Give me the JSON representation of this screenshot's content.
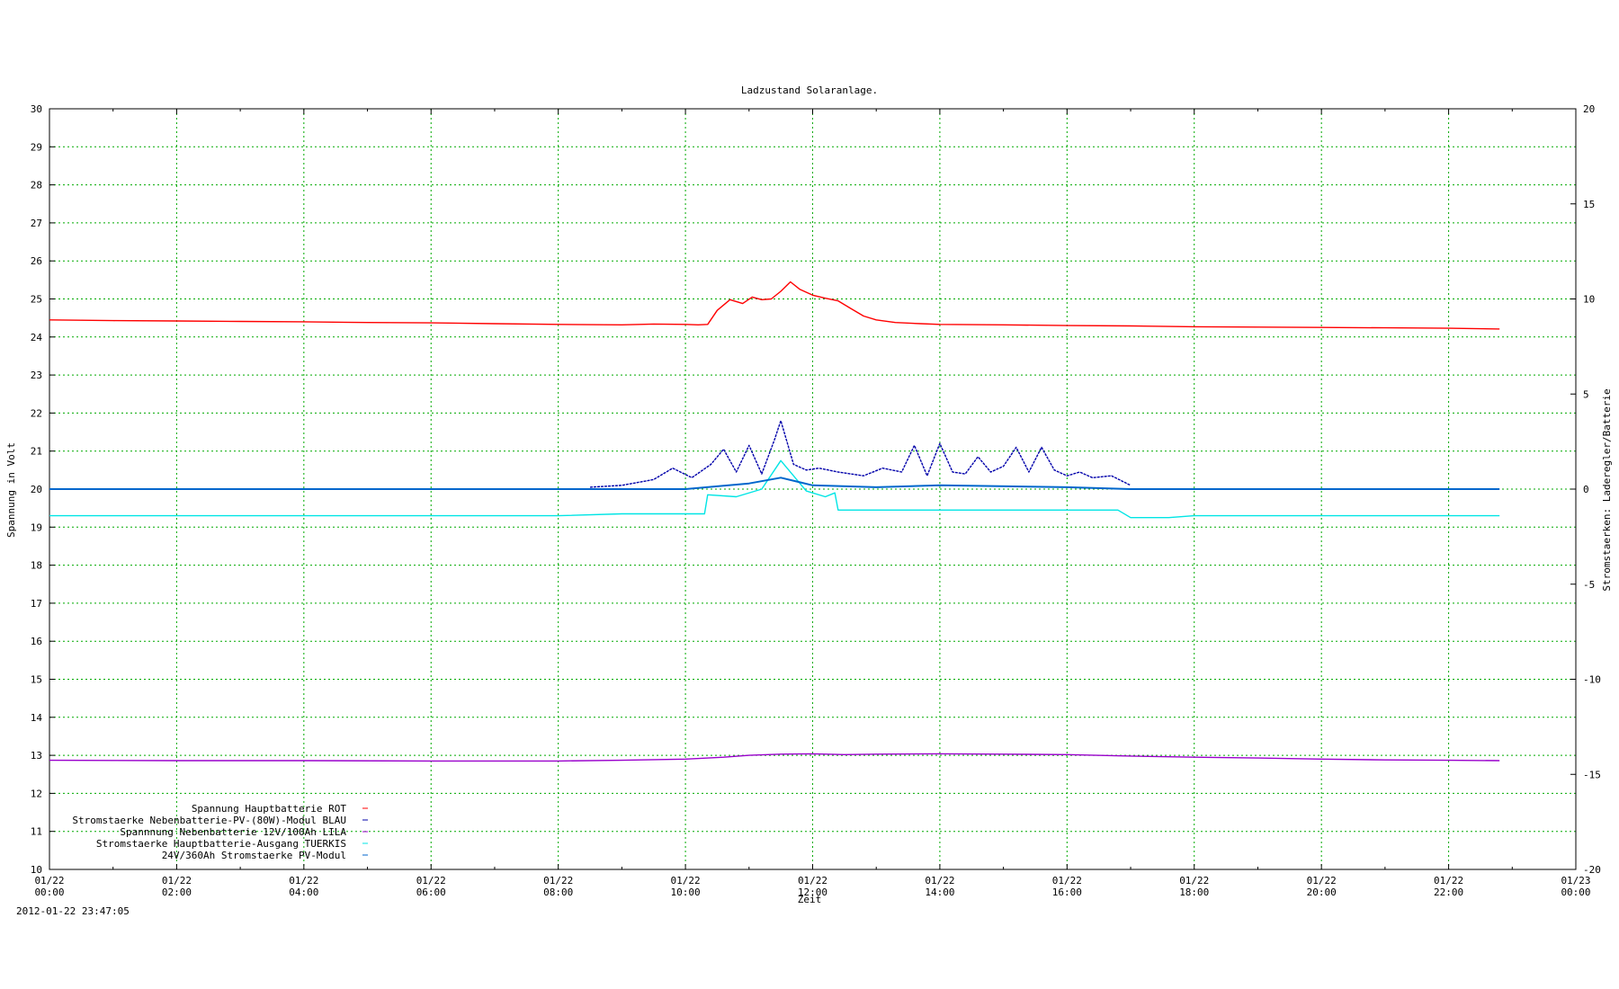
{
  "chart_data": {
    "type": "line",
    "title": "Ladzustand Solaranlage.",
    "xlabel": "Zeit",
    "ylabel": "Spannung in Volt",
    "y2label": "Stromstaerken: Laderegler/Batterie",
    "timestamp": "2012-01-22 23:47:05",
    "grid": true,
    "legend_position": "bottom-left",
    "ylim": [
      10,
      30
    ],
    "y2lim": [
      -20,
      20
    ],
    "xlim": [
      0,
      24
    ],
    "yticks": [
      "30",
      "29",
      "28",
      "27",
      "26",
      "25",
      "24",
      "23",
      "22",
      "21",
      "20",
      "19",
      "18",
      "17",
      "16",
      "15",
      "14",
      "13",
      "12",
      "11",
      "10"
    ],
    "y2ticks": [
      "20",
      "15",
      "10",
      "5",
      "0",
      "-5",
      "-10",
      "-15",
      "-20"
    ],
    "xticks": [
      {
        "date": "01/22",
        "time": "00:00"
      },
      {
        "date": "01/22",
        "time": "02:00"
      },
      {
        "date": "01/22",
        "time": "04:00"
      },
      {
        "date": "01/22",
        "time": "06:00"
      },
      {
        "date": "01/22",
        "time": "08:00"
      },
      {
        "date": "01/22",
        "time": "10:00"
      },
      {
        "date": "01/22",
        "time": "12:00"
      },
      {
        "date": "01/22",
        "time": "14:00"
      },
      {
        "date": "01/22",
        "time": "16:00"
      },
      {
        "date": "01/22",
        "time": "18:00"
      },
      {
        "date": "01/22",
        "time": "20:00"
      },
      {
        "date": "01/22",
        "time": "22:00"
      },
      {
        "date": "01/23",
        "time": "00:00"
      }
    ],
    "series": [
      {
        "name": "Spannung Hauptbatterie ROT",
        "axis": "y1",
        "color": "#ff0000",
        "x": [
          0,
          1,
          2,
          3,
          4,
          5,
          6,
          7,
          8,
          9,
          9.5,
          10,
          10.2,
          10.35,
          10.5,
          10.7,
          10.9,
          11.05,
          11.2,
          11.35,
          11.5,
          11.65,
          11.8,
          12,
          12.2,
          12.4,
          12.6,
          12.8,
          13,
          13.3,
          13.7,
          14,
          15,
          16,
          17,
          18,
          19,
          20,
          21,
          22,
          22.8
        ],
        "values": [
          24.45,
          24.43,
          24.42,
          24.41,
          24.4,
          24.38,
          24.37,
          24.35,
          24.33,
          24.32,
          24.34,
          24.33,
          24.32,
          24.33,
          24.7,
          24.98,
          24.88,
          25.05,
          24.98,
          25.0,
          25.2,
          25.45,
          25.25,
          25.1,
          25.02,
          24.95,
          24.75,
          24.55,
          24.45,
          24.38,
          24.35,
          24.33,
          24.32,
          24.3,
          24.29,
          24.27,
          24.26,
          24.25,
          24.24,
          24.23,
          24.21
        ]
      },
      {
        "name": "Stromstaerke Nebenbatterie-PV-(80W)-Modul BLAU",
        "axis": "y2",
        "color": "#0000aa",
        "x": [
          8.5,
          9,
          9.5,
          9.8,
          10.1,
          10.4,
          10.6,
          10.8,
          11,
          11.2,
          11.4,
          11.5,
          11.7,
          11.9,
          12.1,
          12.4,
          12.8,
          13.1,
          13.4,
          13.6,
          13.8,
          14,
          14.2,
          14.4,
          14.6,
          14.8,
          15,
          15.2,
          15.4,
          15.6,
          15.8,
          16,
          16.2,
          16.4,
          16.7,
          17
        ],
        "values": [
          0.1,
          0.2,
          0.5,
          1.1,
          0.6,
          1.3,
          2.1,
          0.9,
          2.3,
          0.8,
          2.6,
          3.6,
          1.3,
          1.0,
          1.1,
          0.9,
          0.7,
          1.1,
          0.9,
          2.3,
          0.7,
          2.4,
          0.9,
          0.8,
          1.7,
          0.9,
          1.2,
          2.2,
          0.9,
          2.2,
          1.0,
          0.7,
          0.9,
          0.6,
          0.7,
          0.2
        ]
      },
      {
        "name": "Spannnung Nebenbatterie 12V/100Ah LILA",
        "axis": "y1",
        "color": "#9900cc",
        "x": [
          0,
          2,
          4,
          6,
          8,
          9,
          10,
          10.6,
          11,
          11.5,
          12,
          12.5,
          13,
          14,
          15,
          16,
          17,
          18,
          19,
          20,
          21,
          22,
          22.8
        ],
        "values": [
          12.87,
          12.86,
          12.86,
          12.85,
          12.85,
          12.87,
          12.9,
          12.95,
          13.0,
          13.03,
          13.04,
          13.02,
          13.03,
          13.04,
          13.03,
          13.02,
          12.98,
          12.95,
          12.93,
          12.9,
          12.88,
          12.87,
          12.86
        ]
      },
      {
        "name": "Stromstaerke Hauptbatterie-Ausgang TUERKIS",
        "axis": "y2",
        "color": "#00e5e5",
        "x": [
          0,
          8,
          9,
          10,
          10.3,
          10.35,
          10.8,
          11.2,
          11.5,
          11.9,
          12.2,
          12.35,
          12.4,
          13,
          14,
          15,
          16,
          16.8,
          17,
          17.6,
          18,
          20,
          22,
          22.8
        ],
        "values": [
          -1.4,
          -1.4,
          -1.3,
          -1.3,
          -1.3,
          -0.3,
          -0.4,
          0.0,
          1.5,
          -0.1,
          -0.4,
          -0.2,
          -1.1,
          -1.1,
          -1.1,
          -1.1,
          -1.1,
          -1.1,
          -1.5,
          -1.5,
          -1.4,
          -1.4,
          -1.4,
          -1.4
        ]
      },
      {
        "name": "24V/360Ah Stromstaerke PV-Modul",
        "axis": "y2",
        "color": "#0066cc",
        "x": [
          0,
          8,
          10,
          11,
          11.5,
          12,
          13,
          14,
          16,
          17,
          18,
          20,
          22,
          22.8
        ],
        "values": [
          0,
          0,
          0,
          0.3,
          0.6,
          0.2,
          0.1,
          0.2,
          0.1,
          0,
          0,
          0,
          0,
          0
        ]
      }
    ]
  }
}
